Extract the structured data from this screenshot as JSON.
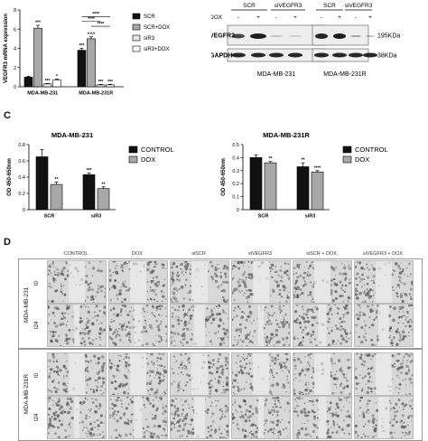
{
  "colors": {
    "black": "#111111",
    "gray": "#a8a8a8",
    "light": "#e6e6e6",
    "white": "#ffffff"
  },
  "panels": {
    "c": "C",
    "d": "D"
  },
  "chart_data": [
    {
      "type": "bar",
      "title": "",
      "ylabel": "VEGFR3 mRNA expression",
      "xlabel": "",
      "ylim": [
        0,
        8
      ],
      "yticks": [
        0,
        2,
        4,
        6,
        8
      ],
      "categories": [
        "MDA-MB-231",
        "MDA-MB-231R"
      ],
      "legend_position": "top-right",
      "series": [
        {
          "name": "SCR",
          "values": [
            1.0,
            3.8
          ],
          "errors": [
            0.1,
            0.2
          ],
          "sig": [
            "",
            "***"
          ],
          "color": "#111111"
        },
        {
          "name": "SCR+DOX",
          "values": [
            6.1,
            5.0
          ],
          "errors": [
            0.3,
            0.2
          ],
          "sig": [
            "***",
            "^^^"
          ],
          "color": "#a8a8a8"
        },
        {
          "name": "siR3",
          "values": [
            0.3,
            0.2
          ],
          "errors": [
            0.05,
            0.05
          ],
          "sig": [
            "***",
            "***"
          ],
          "color": "#e6e6e6"
        },
        {
          "name": "siR3+DOX",
          "values": [
            0.7,
            0.2
          ],
          "errors": [
            0.1,
            0.05
          ],
          "sig": [
            "*",
            "***"
          ],
          "color": "#ffffff"
        }
      ],
      "brackets": [
        "****",
        "****",
        "****"
      ]
    },
    {
      "type": "bar",
      "title": "MDA-MB-231",
      "ylabel": "OD 450-650nm",
      "xlabel": "",
      "ylim": [
        0,
        0.8
      ],
      "yticks": [
        0.0,
        0.2,
        0.4,
        0.6,
        0.8
      ],
      "categories": [
        "SCR",
        "siR3"
      ],
      "legend_position": "top-right",
      "series": [
        {
          "name": "CONTROL",
          "values": [
            0.65,
            0.43
          ],
          "errors": [
            0.09,
            0.02
          ],
          "sig": [
            "",
            "***"
          ],
          "color": "#111111"
        },
        {
          "name": "DOX",
          "values": [
            0.31,
            0.26
          ],
          "errors": [
            0.03,
            0.02
          ],
          "sig": [
            "**",
            "**"
          ],
          "color": "#a8a8a8"
        }
      ]
    },
    {
      "type": "bar",
      "title": "MDA-MB-231R",
      "ylabel": "OD 450-650nm",
      "xlabel": "",
      "ylim": [
        0,
        0.5
      ],
      "yticks": [
        0.0,
        0.1,
        0.2,
        0.3,
        0.4,
        0.5
      ],
      "categories": [
        "SCR",
        "siR3"
      ],
      "legend_position": "top-right",
      "series": [
        {
          "name": "CONTROL",
          "values": [
            0.4,
            0.33
          ],
          "errors": [
            0.02,
            0.03
          ],
          "sig": [
            "",
            "**"
          ],
          "color": "#111111"
        },
        {
          "name": "DOX",
          "values": [
            0.36,
            0.29
          ],
          "errors": [
            0.01,
            0.01
          ],
          "sig": [
            "**",
            "****"
          ],
          "color": "#a8a8a8"
        }
      ]
    }
  ],
  "western": {
    "groups": [
      {
        "label": "SCR",
        "lanes": [
          "-",
          "+"
        ]
      },
      {
        "label": "siVEGFR3",
        "lanes": [
          "-",
          "+"
        ]
      },
      {
        "label": "SCR",
        "lanes": [
          "-",
          "+"
        ]
      },
      {
        "label": "siVEGFR3",
        "lanes": [
          "-",
          "+"
        ]
      }
    ],
    "dox_label": "DOX",
    "rows": [
      {
        "label": "VEGFR3",
        "size": "195KDa"
      },
      {
        "label": "GAPDH",
        "size": "38KDa"
      }
    ],
    "cell_lines": [
      "MDA-MB-231",
      "MDA-MB-231R"
    ]
  },
  "migration": {
    "conditions": [
      "CONTROL",
      "DOX",
      "siSCR",
      "siVEGFR3",
      "siSCR + DOX",
      "siVEGFR3 + DOX"
    ],
    "cell_lines": [
      "MDA-MB-231",
      "MDA-MB-231R"
    ],
    "times": [
      "t0",
      "t24"
    ]
  }
}
